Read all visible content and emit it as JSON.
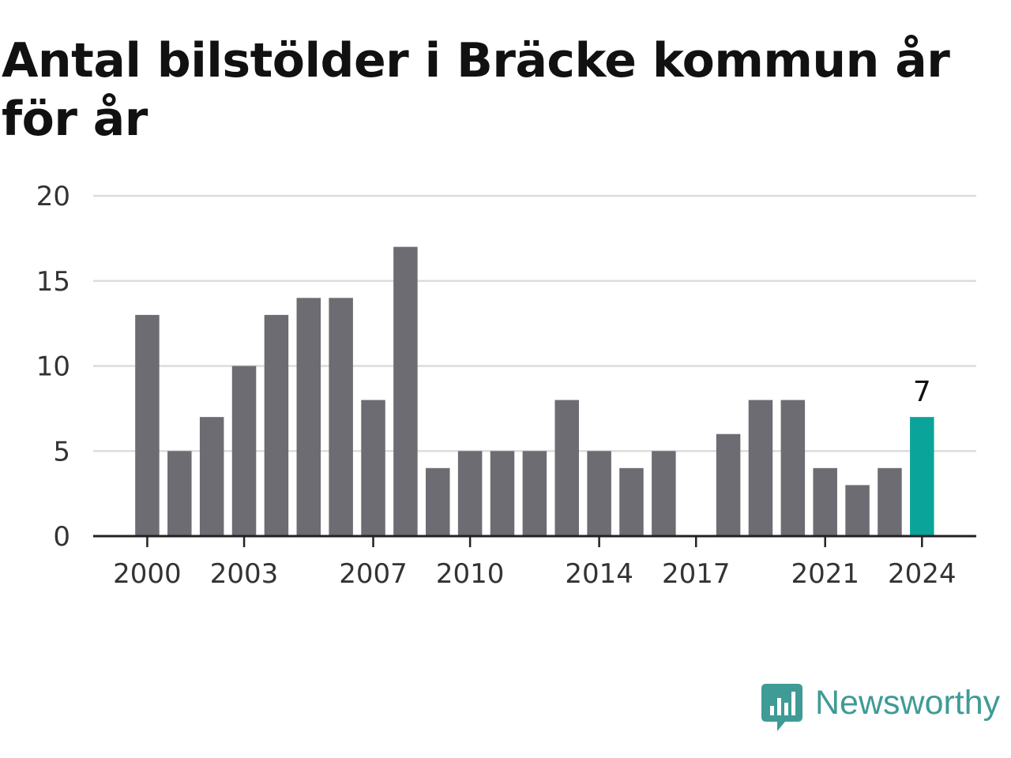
{
  "title": "Antal bilstölder i Bräcke kommun år för år",
  "brand": {
    "name": "Newsworthy",
    "color": "#3f9b96"
  },
  "colors": {
    "bar": "#6d6c72",
    "highlight": "#0aa49a",
    "grid": "#dcdcdc",
    "axis": "#222222"
  },
  "chart_data": {
    "type": "bar",
    "title": "Antal bilstölder i Bräcke kommun år för år",
    "xlabel": "",
    "ylabel": "",
    "categories": [
      "2000",
      "2001",
      "2002",
      "2003",
      "2004",
      "2005",
      "2006",
      "2007",
      "2008",
      "2009",
      "2010",
      "2011",
      "2012",
      "2013",
      "2014",
      "2015",
      "2016",
      "2017",
      "2018",
      "2019",
      "2020",
      "2021",
      "2022",
      "2023",
      "2024"
    ],
    "values": [
      13,
      5,
      7,
      10,
      13,
      14,
      14,
      8,
      17,
      4,
      5,
      5,
      5,
      8,
      5,
      4,
      5,
      0,
      6,
      8,
      8,
      4,
      3,
      4,
      7
    ],
    "highlight": "2024",
    "highlight_label": "7",
    "ylim": [
      0,
      20
    ],
    "yticks": [
      "0",
      "5",
      "10",
      "15",
      "20"
    ],
    "xticks": [
      "2000",
      "2003",
      "2007",
      "2010",
      "2014",
      "2017",
      "2021",
      "2024"
    ],
    "grid": true,
    "legend": "none"
  }
}
